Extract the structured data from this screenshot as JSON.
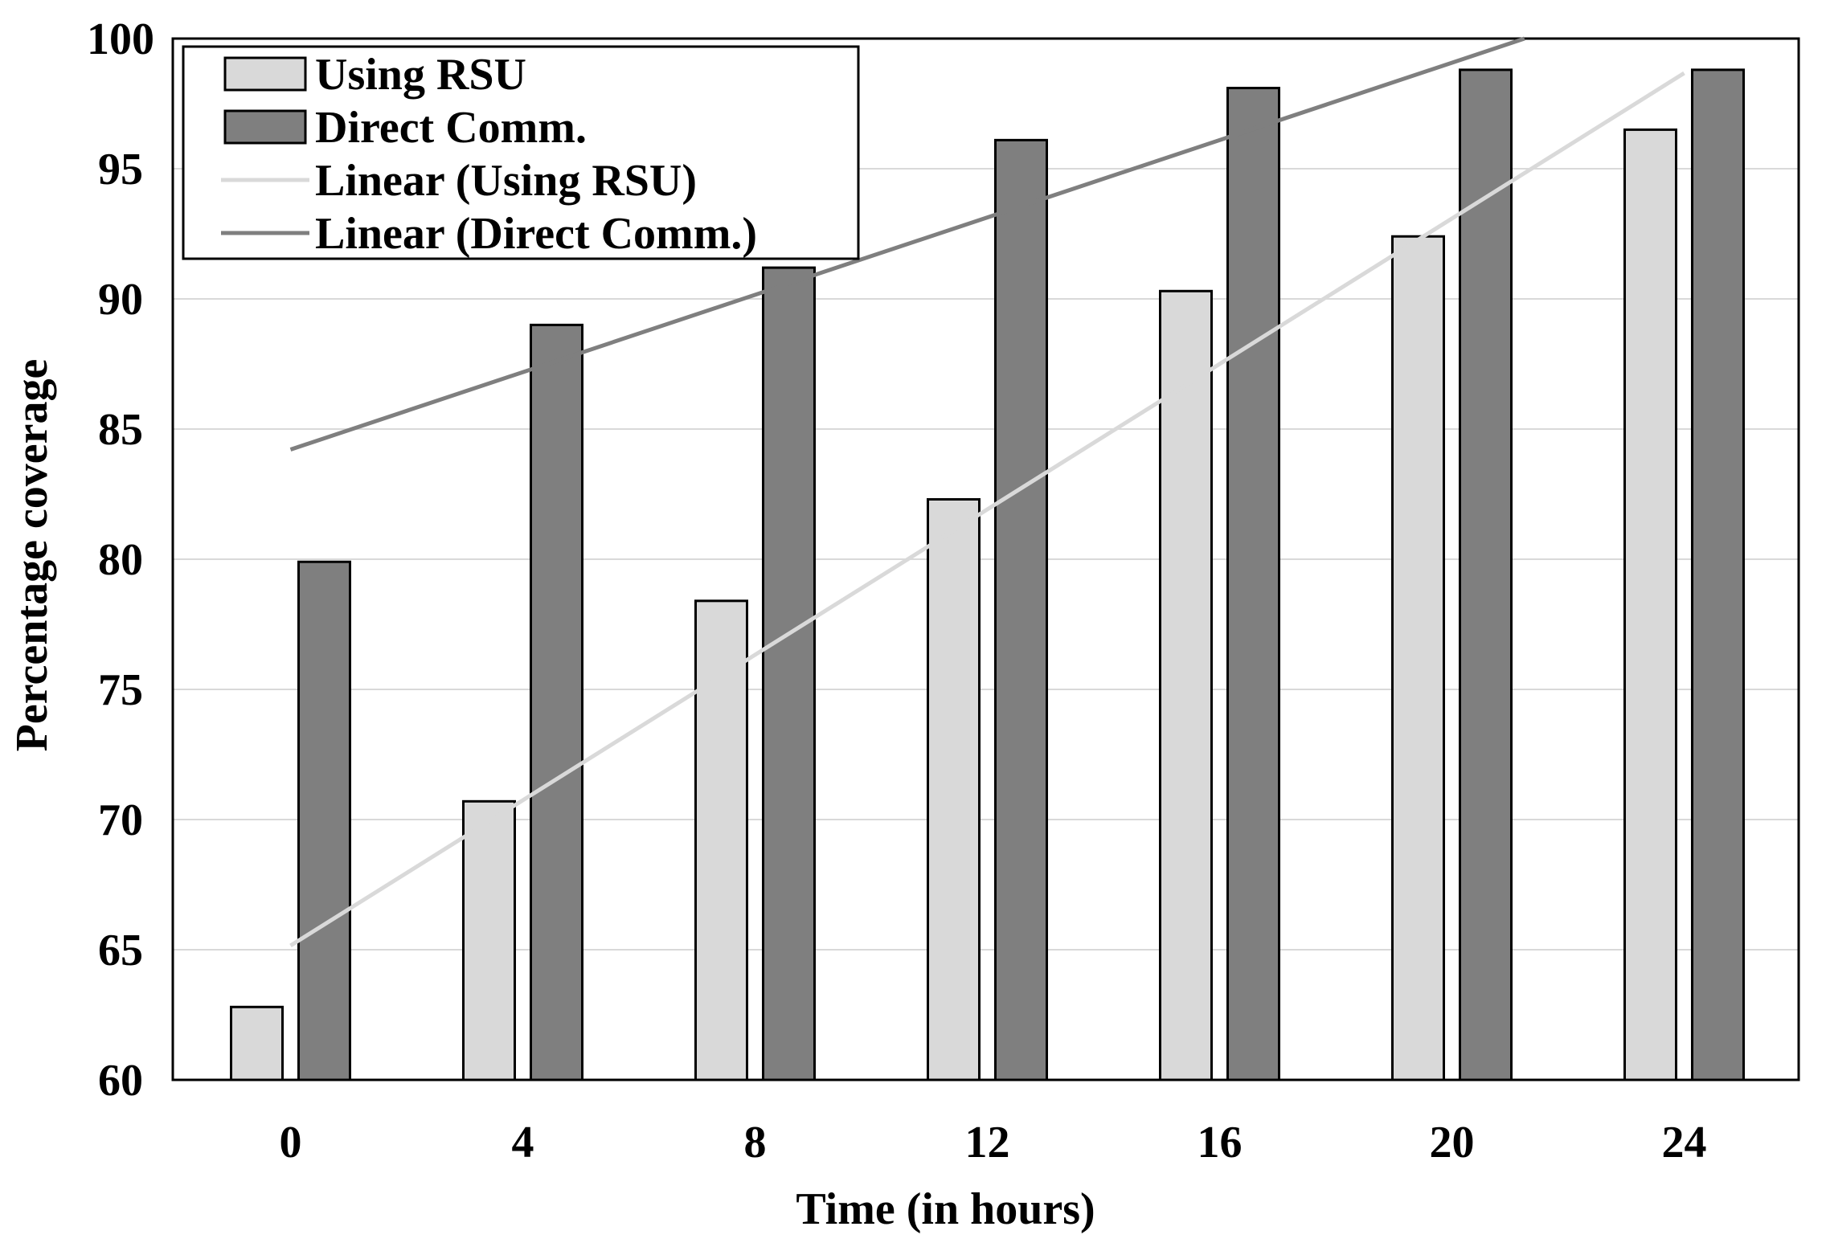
{
  "chart_data": {
    "type": "bar",
    "title": "",
    "xlabel": "Time (in hours)",
    "ylabel": "Percentage coverage",
    "categories": [
      "0",
      "4",
      "8",
      "12",
      "16",
      "20",
      "24"
    ],
    "ylim": [
      60,
      100
    ],
    "yticks": [
      "60",
      "65",
      "70",
      "75",
      "80",
      "85",
      "90",
      "95",
      "100"
    ],
    "grid": true,
    "legend_position": "top-left",
    "series": [
      {
        "name": "Using RSU",
        "color": "#d9d9d9",
        "values": [
          62.8,
          70.7,
          78.4,
          82.3,
          90.3,
          92.4,
          96.5
        ]
      },
      {
        "name": "Direct Comm.",
        "color": "#7f7f7f",
        "values": [
          79.9,
          89.0,
          91.2,
          96.1,
          98.1,
          98.8,
          98.8
        ]
      }
    ],
    "trendlines": [
      {
        "name": "Linear (Using RSU)",
        "color": "#d9d9d9",
        "series": "Using RSU"
      },
      {
        "name": "Linear (Direct Comm.)",
        "color": "#7f7f7f",
        "series": "Direct Comm."
      }
    ]
  }
}
